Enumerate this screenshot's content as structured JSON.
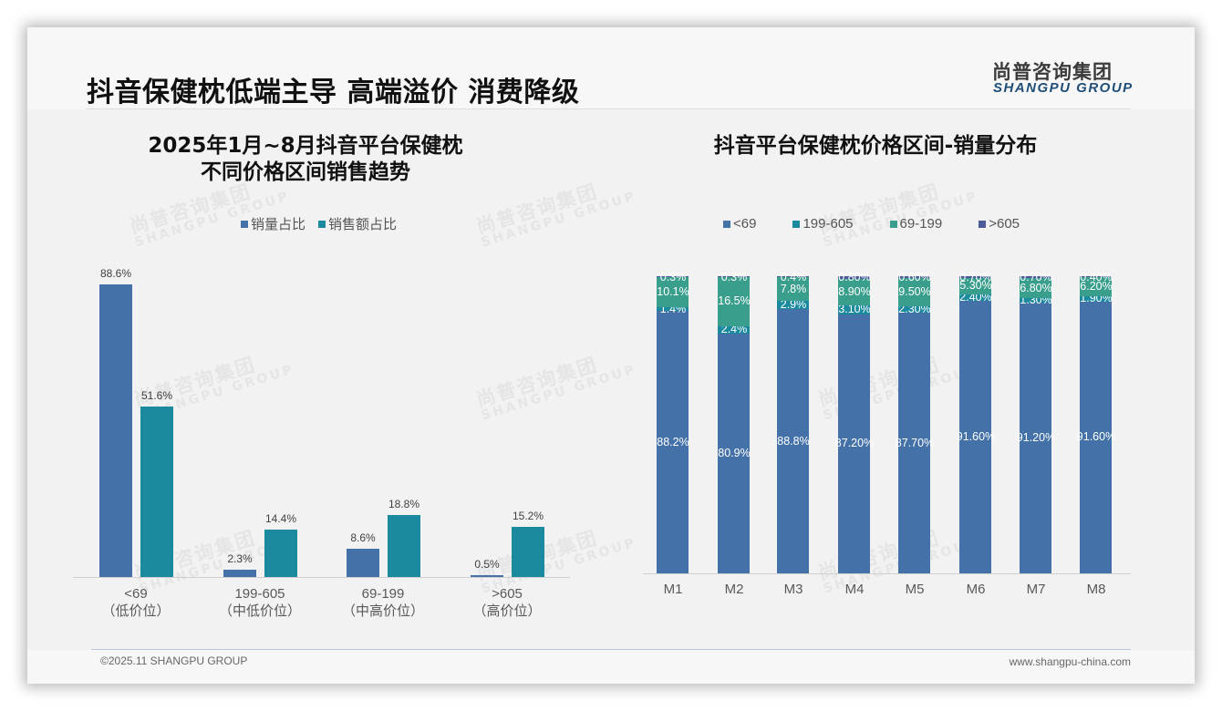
{
  "header": {
    "title": "抖音保健枕低端主导 高端溢价 消费降级",
    "logo_cn": "尚普咨询集团",
    "logo_en": "SHANGPU GROUP"
  },
  "watermark": {
    "cn": "尚普咨询集团",
    "en": "SHANGPU GROUP"
  },
  "colors": {
    "blue": "#4472a8",
    "teal": "#1b8a9e",
    "green": "#3a9e8c",
    "dark_blue": "#4a5a9a",
    "background": "#f2f2f2"
  },
  "left_chart": {
    "title_line1": "2025年1月~8月抖音平台保健枕",
    "title_line2": "不同价格区间销售趋势",
    "legend": [
      {
        "label": "销量占比",
        "color": "#4472a8"
      },
      {
        "label": "销售额占比",
        "color": "#1b8a9e"
      }
    ],
    "categories": [
      {
        "range": "<69",
        "tier": "（低价位）",
        "volume": "88.6%",
        "revenue": "51.6%"
      },
      {
        "range": "199-605",
        "tier": "（中低价位）",
        "volume": "2.3%",
        "revenue": "14.4%"
      },
      {
        "range": "69-199",
        "tier": "（中高价位）",
        "volume": "8.6%",
        "revenue": "18.8%"
      },
      {
        "range": ">605",
        "tier": "（高价位）",
        "volume": "0.5%",
        "revenue": "15.2%"
      }
    ]
  },
  "right_chart": {
    "title": "抖音平台保健枕价格区间-销量分布",
    "legend": [
      {
        "label": "<69",
        "color": "#4472a8"
      },
      {
        "label": "199-605",
        "color": "#1b8a9e"
      },
      {
        "label": "69-199",
        "color": "#3a9e8c"
      },
      {
        "label": ">605",
        "color": "#4a5a9a"
      }
    ],
    "months": [
      {
        "label": "M1",
        "lt69": "88.2%",
        "r199_605": "1.4%",
        "r69_199": "10.1%",
        "gt605": "0.3%"
      },
      {
        "label": "M2",
        "lt69": "80.9%",
        "r199_605": "2.4%",
        "r69_199": "16.5%",
        "gt605": "0.3%"
      },
      {
        "label": "M3",
        "lt69": "88.8%",
        "r199_605": "2.9%",
        "r69_199": "7.8%",
        "gt605": "0.4%"
      },
      {
        "label": "M4",
        "lt69": "87.20%",
        "r199_605": "3.10%",
        "r69_199": "8.90%",
        "gt605": "0.80%"
      },
      {
        "label": "M5",
        "lt69": "87.70%",
        "r199_605": "2.30%",
        "r69_199": "9.50%",
        "gt605": "0.60%"
      },
      {
        "label": "M6",
        "lt69": "91.60%",
        "r199_605": "2.40%",
        "r69_199": "5.30%",
        "gt605": "0.70%"
      },
      {
        "label": "M7",
        "lt69": "91.20%",
        "r199_605": "1.30%",
        "r69_199": "6.80%",
        "gt605": "0.70%"
      },
      {
        "label": "M8",
        "lt69": "91.60%",
        "r199_605": "1.90%",
        "r69_199": "6.20%",
        "gt605": "0.40%"
      }
    ]
  },
  "footer": {
    "copyright": "©2025.11 SHANGPU GROUP",
    "website": "www.shangpu-china.com"
  },
  "chart_data": [
    {
      "type": "bar",
      "title": "2025年1月~8月抖音平台保健枕不同价格区间销售趋势",
      "categories": [
        "<69（低价位）",
        "199-605（中低价位）",
        "69-199（中高价位）",
        ">605（高价位）"
      ],
      "series": [
        {
          "name": "销量占比",
          "values": [
            88.6,
            2.3,
            8.6,
            0.5
          ]
        },
        {
          "name": "销售额占比",
          "values": [
            51.6,
            14.4,
            18.8,
            15.2
          ]
        }
      ],
      "xlabel": "",
      "ylabel": "",
      "unit": "%",
      "legend_position": "top",
      "grid": false,
      "ylim": [
        0,
        100
      ]
    },
    {
      "type": "bar",
      "stacked": true,
      "title": "抖音平台保健枕价格区间-销量分布",
      "categories": [
        "M1",
        "M2",
        "M3",
        "M4",
        "M5",
        "M6",
        "M7",
        "M8"
      ],
      "series": [
        {
          "name": "<69",
          "values": [
            88.2,
            80.9,
            88.8,
            87.2,
            87.7,
            91.6,
            91.2,
            91.6
          ]
        },
        {
          "name": "199-605",
          "values": [
            1.4,
            2.4,
            2.9,
            3.1,
            2.3,
            2.4,
            1.3,
            1.9
          ]
        },
        {
          "name": "69-199",
          "values": [
            10.1,
            16.5,
            7.8,
            8.9,
            9.5,
            5.3,
            6.8,
            6.2
          ]
        },
        {
          "name": ">605",
          "values": [
            0.3,
            0.3,
            0.4,
            0.8,
            0.6,
            0.7,
            0.7,
            0.4
          ]
        }
      ],
      "xlabel": "",
      "ylabel": "",
      "unit": "%",
      "legend_position": "top",
      "grid": false,
      "ylim": [
        0,
        100
      ]
    }
  ]
}
